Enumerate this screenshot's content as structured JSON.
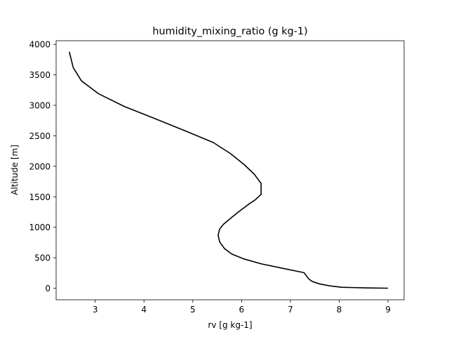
{
  "chart_data": {
    "type": "line",
    "title": "humidity_mixing_ratio (g kg-1)",
    "xlabel": "rv [g kg-1]",
    "ylabel": "Altitude [m]",
    "xlim": [
      2.2,
      9.33
    ],
    "ylim": [
      -190,
      4060
    ],
    "xticks": [
      3,
      4,
      5,
      6,
      7,
      8,
      9
    ],
    "yticks": [
      0,
      500,
      1000,
      1500,
      2000,
      2500,
      3000,
      3500,
      4000
    ],
    "grid": false,
    "legend": "none",
    "line_color": "#000000",
    "series": [
      {
        "x": [
          9.0,
          8.55,
          8.05,
          7.8,
          7.6,
          7.45,
          7.38,
          7.33,
          7.28,
          6.88,
          6.4,
          6.05,
          5.8,
          5.65,
          5.55,
          5.52,
          5.55,
          5.63,
          5.78,
          5.95,
          6.15,
          6.28,
          6.4,
          6.4,
          6.26,
          6.05,
          5.77,
          5.42,
          4.85,
          4.2,
          3.6,
          3.07,
          2.72,
          2.55,
          2.47
        ],
        "y": [
          0,
          5,
          15,
          40,
          70,
          110,
          150,
          200,
          255,
          320,
          400,
          480,
          560,
          650,
          760,
          870,
          970,
          1050,
          1150,
          1260,
          1380,
          1450,
          1540,
          1720,
          1870,
          2030,
          2210,
          2390,
          2580,
          2790,
          2980,
          3190,
          3400,
          3620,
          3880
        ]
      }
    ]
  }
}
